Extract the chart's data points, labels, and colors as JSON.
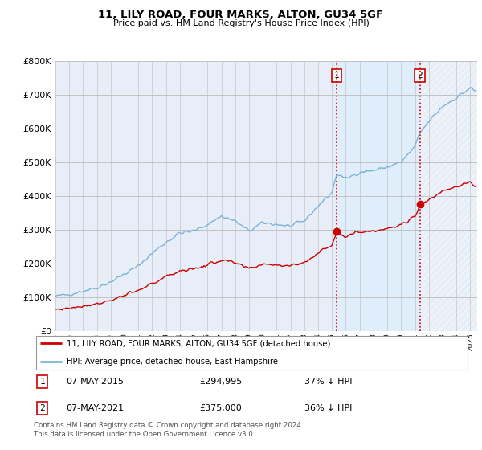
{
  "title": "11, LILY ROAD, FOUR MARKS, ALTON, GU34 5GF",
  "subtitle": "Price paid vs. HM Land Registry's House Price Index (HPI)",
  "hpi_color": "#7ab4d8",
  "price_color": "#cc0000",
  "shade_color": "#ddeeff",
  "marker1_year": 2015.35,
  "marker2_year": 2021.35,
  "marker1_label": "1",
  "marker2_label": "2",
  "marker1_price": 294995,
  "marker2_price": 375000,
  "marker1_hpi": 460000,
  "marker2_hpi": 585000,
  "marker1_date": "07-MAY-2015",
  "marker2_date": "07-MAY-2021",
  "marker1_pct": "37% ↓ HPI",
  "marker2_pct": "36% ↓ HPI",
  "legend_line1": "11, LILY ROAD, FOUR MARKS, ALTON, GU34 5GF (detached house)",
  "legend_line2": "HPI: Average price, detached house, East Hampshire",
  "footer": "Contains HM Land Registry data © Crown copyright and database right 2024.\nThis data is licensed under the Open Government Licence v3.0.",
  "ylim": [
    0,
    800000
  ],
  "yticks": [
    0,
    100000,
    200000,
    300000,
    400000,
    500000,
    600000,
    700000,
    800000
  ],
  "bg_color": "#e8eef8"
}
